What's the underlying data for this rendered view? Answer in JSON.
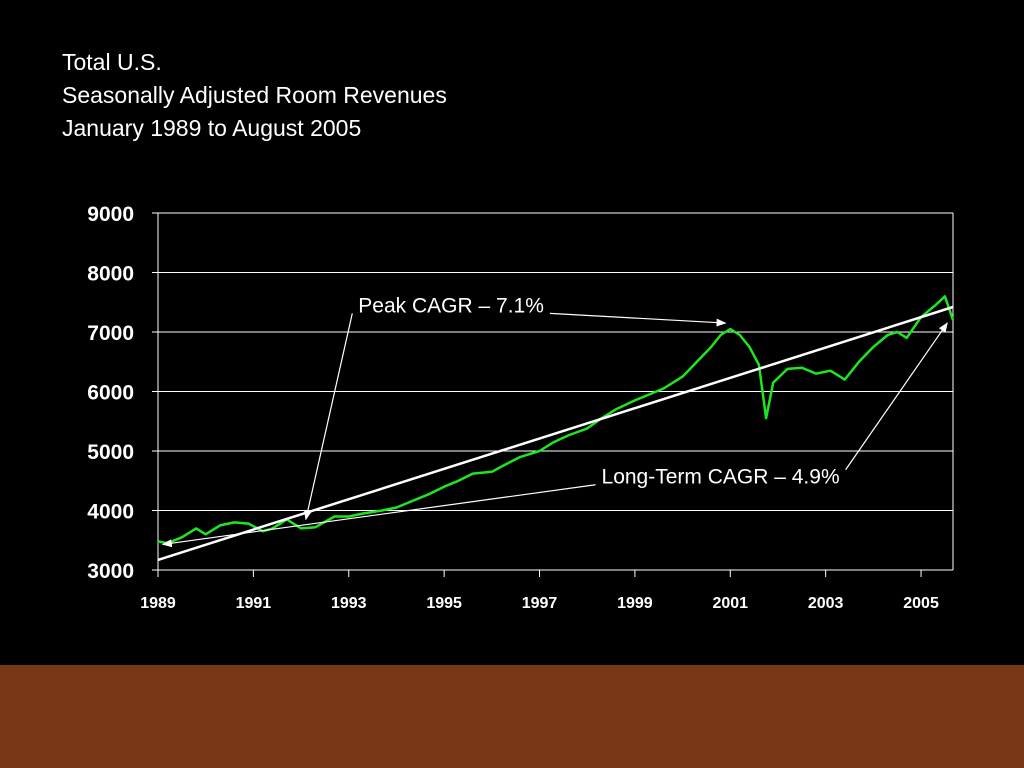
{
  "title_lines": [
    "Total U.S.",
    "Seasonally Adjusted Room Revenues",
    "January 1989 to August 2005"
  ],
  "colors": {
    "background": "#000000",
    "series": "#1ee61e",
    "trend": "#ffffff",
    "gridline": "#ffffff",
    "footer_band": "#7a3716"
  },
  "chart_data": {
    "type": "line",
    "title": "Total U.S. Seasonally Adjusted Room Revenues January 1989 to August 2005",
    "xlabel": "",
    "ylabel": "",
    "xlim": [
      1989.0,
      2005.67
    ],
    "ylim": [
      3000,
      9000
    ],
    "ytick_labels": [
      "3000",
      "4000",
      "5000",
      "6000",
      "7000",
      "8000",
      "9000"
    ],
    "xtick_labels": [
      "1989",
      "1991",
      "1993",
      "1995",
      "1997",
      "1999",
      "2001",
      "2003",
      "2005"
    ],
    "grid": "horizontal",
    "legend": "none",
    "series": [
      {
        "style": "line",
        "x": [
          1989.0,
          1989.2,
          1989.5,
          1989.8,
          1990.0,
          1990.3,
          1990.6,
          1990.9,
          1991.2,
          1991.4,
          1991.7,
          1992.0,
          1992.3,
          1992.7,
          1993.0,
          1993.3,
          1993.7,
          1994.0,
          1994.3,
          1994.7,
          1995.0,
          1995.3,
          1995.6,
          1996.0,
          1996.3,
          1996.6,
          1997.0,
          1997.3,
          1997.6,
          1998.0,
          1998.3,
          1998.6,
          1999.0,
          1999.3,
          1999.6,
          2000.0,
          2000.3,
          2000.6,
          2000.8,
          2001.0,
          2001.2,
          2001.4,
          2001.6,
          2001.75,
          2001.9,
          2002.2,
          2002.5,
          2002.8,
          2003.1,
          2003.4,
          2003.7,
          2004.0,
          2004.3,
          2004.5,
          2004.7,
          2005.0,
          2005.3,
          2005.5,
          2005.67
        ],
        "values": [
          3480,
          3450,
          3550,
          3700,
          3600,
          3750,
          3800,
          3780,
          3650,
          3700,
          3850,
          3700,
          3720,
          3900,
          3900,
          3950,
          4000,
          4050,
          4150,
          4280,
          4400,
          4500,
          4620,
          4650,
          4780,
          4900,
          5000,
          5150,
          5260,
          5380,
          5550,
          5700,
          5850,
          5950,
          6050,
          6250,
          6500,
          6750,
          6950,
          7050,
          6950,
          6750,
          6450,
          5550,
          6150,
          6380,
          6400,
          6300,
          6350,
          6200,
          6500,
          6750,
          6950,
          7000,
          6900,
          7250,
          7450,
          7600,
          7200
        ]
      },
      {
        "style": "trend",
        "x": [
          1989.0,
          2005.67
        ],
        "values": [
          3170,
          7420
        ]
      }
    ],
    "annotations": [
      {
        "text": "Peak CAGR – 7.1%",
        "label_x": 1993.2,
        "label_y": 7330,
        "targets": [
          {
            "x": 1992.1,
            "y": 3850
          },
          {
            "x": 2000.9,
            "y": 7150
          }
        ]
      },
      {
        "text": "Long-Term CAGR – 4.9%",
        "label_x": 1998.3,
        "label_y": 4450,
        "targets": [
          {
            "x": 1989.1,
            "y": 3430
          },
          {
            "x": 2005.55,
            "y": 7150
          }
        ]
      }
    ]
  }
}
